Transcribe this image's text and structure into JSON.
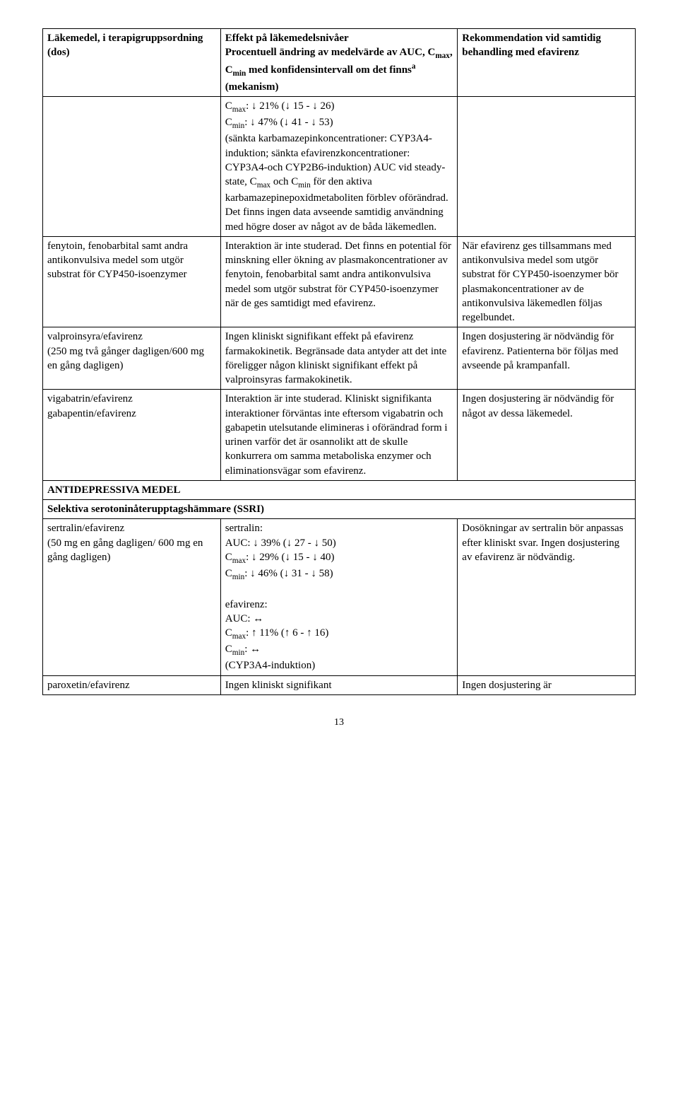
{
  "header": {
    "col1": "Läkemedel, i terapigruppsordning (dos)",
    "col2_line1": "Effekt på läkemedelsnivåer",
    "col2_line2": "Procentuell ändring av medelvärde av AUC, C",
    "col2_sub1": "max",
    "col2_line3": ", C",
    "col2_sub2": "min",
    "col2_line4": " med konfidensintervall om det finns",
    "col2_sup": "a",
    "col2_line5": " (mekanism)",
    "col3": "Rekommendation vid samtidig behandling med efavirenz"
  },
  "rows": [
    {
      "col1": "",
      "col2": "C<sub>max</sub>: ↓ 21% (↓ 15 - ↓ 26)\nC<sub>min</sub>: ↓ 47% (↓ 41 - ↓ 53)\n(sänkta karbamazepinkoncentrationer: CYP3A4-induktion; sänkta efavirenzkoncentrationer: CYP3A4-och CYP2B6-induktion) AUC vid steady-state, C<sub>max</sub> och C<sub>min</sub> för den aktiva karbamazepinepoxidmetaboliten förblev oförändrad. Det finns ingen data avseende samtidig användning med högre doser av något av de båda läkemedlen.",
      "col3": ""
    },
    {
      "col1": "fenytoin, fenobarbital samt andra antikonvulsiva medel som utgör substrat för CYP450-isoenzymer",
      "col2": "Interaktion är inte studerad. Det finns en potential för minskning eller ökning av plasmakoncentrationer av fenytoin, fenobarbital samt andra antikonvulsiva medel som utgör substrat för CYP450-isoenzymer när de ges samtidigt med efavirenz.",
      "col3": "När efavirenz ges tillsammans med antikonvulsiva medel som utgör substrat för CYP450-isoenzymer bör plasmakoncentrationer av de antikonvulsiva läkemedlen följas regelbundet."
    },
    {
      "col1": "valproinsyra/efavirenz\n(250 mg två gånger dagligen/600 mg en gång dagligen)",
      "col2": "Ingen kliniskt signifikant effekt på efavirenz farmakokinetik. Begränsade data antyder att det inte föreligger någon kliniskt signifikant effekt på valproinsyras farmakokinetik.",
      "col3": "Ingen dosjustering är nödvändig för efavirenz. Patienterna bör följas med avseende på krampanfall."
    },
    {
      "col1": "vigabatrin/efavirenz\ngabapentin/efavirenz",
      "col2": "Interaktion är inte studerad. Kliniskt signifikanta interaktioner förväntas inte eftersom vigabatrin och gabapetin utelsutande elimineras i oförändrad form i urinen varför det är osannolikt att de skulle konkurrera om samma metaboliska enzymer och eliminationsvägar som efavirenz.",
      "col3": "Ingen dosjustering är nödvändig för något av dessa läkemedel."
    }
  ],
  "section1": "ANTIDEPRESSIVA MEDEL",
  "section2": "Selektiva serotoninåterupptagshämmare (SSRI)",
  "rows2": [
    {
      "col1": "sertralin/efavirenz\n(50 mg en gång dagligen/ 600 mg en gång dagligen)",
      "col2": "sertralin:\nAUC: ↓ 39% (↓ 27 - ↓ 50)\nC<sub>max</sub>: ↓ 29% (↓ 15 - ↓ 40)\nC<sub>min</sub>: ↓ 46% (↓ 31 - ↓ 58)\n\nefavirenz:\nAUC: ↔\nC<sub>max</sub>: ↑ 11% (↑ 6 - ↑ 16)\nC<sub>min</sub>: ↔\n(CYP3A4-induktion)",
      "col3": "Dosökningar av sertralin bör anpassas efter kliniskt svar. Ingen dosjustering av efavirenz är nödvändig."
    },
    {
      "col1": "paroxetin/efavirenz",
      "col2": "Ingen kliniskt signifikant",
      "col3": "Ingen dosjustering är"
    }
  ],
  "pageNumber": "13"
}
